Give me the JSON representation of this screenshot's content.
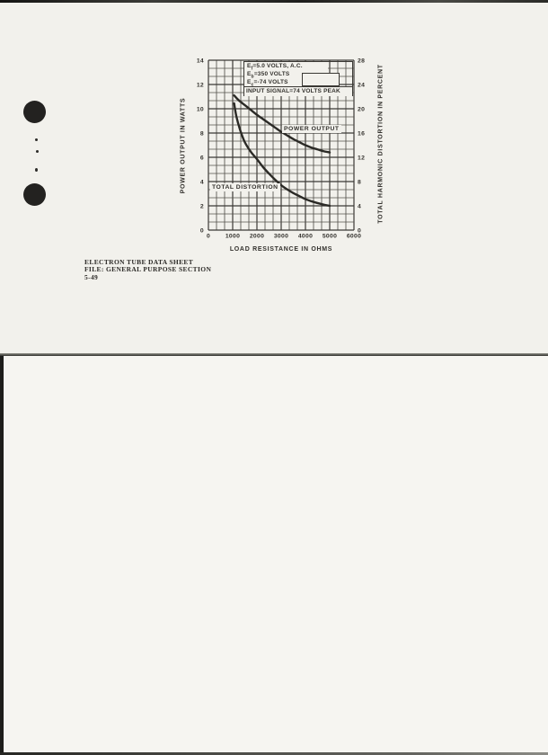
{
  "page": {
    "footer": {
      "line1": "ELECTRON TUBE DATA SHEET",
      "line2": "FILE: GENERAL PURPOSE SECTION",
      "line3": "5-49"
    }
  },
  "chart_data": {
    "type": "line",
    "title": "",
    "xlabel": "LOAD RESISTANCE IN OHMS",
    "ylabel_left": "POWER OUTPUT IN WATTS",
    "ylabel_right": "TOTAL HARMONIC DISTORTION IN PERCENT",
    "xlim": [
      0,
      6000
    ],
    "ylim_left": [
      0,
      14
    ],
    "ylim_right": [
      0,
      28
    ],
    "x_ticks": [
      0,
      1000,
      2000,
      3000,
      4000,
      5000,
      6000
    ],
    "y_ticks_left": [
      0,
      2,
      4,
      6,
      8,
      10,
      12,
      14
    ],
    "y_ticks_right": [
      0,
      4,
      8,
      12,
      16,
      20,
      24,
      28
    ],
    "x_minor_per_major": 3,
    "y_minor_per_major": 3,
    "grid": true,
    "legend_position": "inside-top",
    "conditions": [
      {
        "sym": "E",
        "sub": "f",
        "rest": "=5.0 VOLTS, A.C."
      },
      {
        "sym": "E",
        "sub": "b",
        "rest": "=350 VOLTS"
      },
      {
        "sym": "E",
        "sub": "c",
        "rest": "=-74 VOLTS"
      }
    ],
    "input_signal": "INPUT SIGNAL=74 VOLTS PEAK",
    "series": [
      {
        "name": "POWER OUTPUT",
        "axis": "left",
        "unit": "watts",
        "x": [
          1060,
          1250,
          1500,
          1750,
          2000,
          2250,
          2500,
          2750,
          3000,
          3250,
          3500,
          3750,
          4000,
          4250,
          4500,
          4750,
          5000
        ],
        "y": [
          11.1,
          10.7,
          10.3,
          9.9,
          9.5,
          9.15,
          8.8,
          8.45,
          8.1,
          7.8,
          7.5,
          7.25,
          7.0,
          6.8,
          6.65,
          6.5,
          6.4
        ]
      },
      {
        "name": "TOTAL DISTORTION",
        "axis": "right",
        "unit": "percent",
        "x": [
          1060,
          1150,
          1300,
          1500,
          1750,
          2000,
          2250,
          2500,
          2750,
          3000,
          3250,
          3500,
          3750,
          4000,
          4250,
          4500,
          4750,
          5000
        ],
        "y": [
          20.9,
          18.8,
          16.6,
          14.5,
          12.9,
          11.7,
          10.4,
          9.3,
          8.3,
          7.4,
          6.7,
          6.1,
          5.6,
          5.1,
          4.75,
          4.45,
          4.2,
          4.0
        ]
      }
    ],
    "ink": "#34322d",
    "grid_major_color": "#3b3935",
    "grid_minor_color": "#54524c",
    "curve_color": "#2b2a26",
    "paper": "#f2f1ec"
  }
}
